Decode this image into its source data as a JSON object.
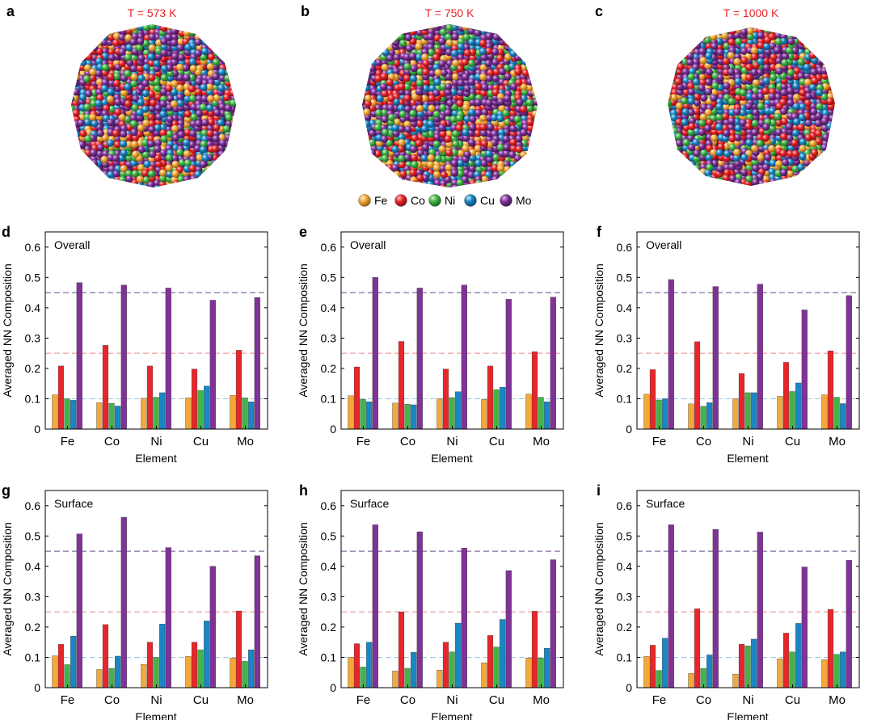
{
  "top_panels": [
    {
      "letter": "a",
      "temperature": "T = 573 K"
    },
    {
      "letter": "b",
      "temperature": "T = 750 K"
    },
    {
      "letter": "c",
      "temperature": "T = 1000 K"
    }
  ],
  "legend": [
    {
      "label": "Fe",
      "color": "#f2a93b"
    },
    {
      "label": "Co",
      "color": "#e8262a"
    },
    {
      "label": "Ni",
      "color": "#44b34a"
    },
    {
      "label": "Cu",
      "color": "#1a86c4"
    },
    {
      "label": "Mo",
      "color": "#7f3396"
    }
  ],
  "reference_lines": [
    {
      "value": 0.45,
      "color": "#6b4a86"
    },
    {
      "value": 0.25,
      "color": "#e7898c"
    },
    {
      "value": 0.1,
      "color": "#9fc6dd"
    }
  ],
  "chart_data": [
    {
      "panel": "d",
      "type": "bar",
      "annotation": "Overall",
      "xlabel": "Element",
      "ylabel": "Averaged NN Composition",
      "categories": [
        "Fe",
        "Co",
        "Ni",
        "Cu",
        "Mo"
      ],
      "ylim": [
        0,
        0.65
      ],
      "yticks": [
        "0",
        "0.1",
        "0.2",
        "0.3",
        "0.4",
        "0.5",
        "0.6"
      ],
      "series": [
        {
          "name": "Fe",
          "values": [
            0.113,
            0.087,
            0.102,
            0.103,
            0.111
          ]
        },
        {
          "name": "Co",
          "values": [
            0.208,
            0.276,
            0.208,
            0.198,
            0.26
          ]
        },
        {
          "name": "Ni",
          "values": [
            0.1,
            0.085,
            0.105,
            0.127,
            0.103
          ]
        },
        {
          "name": "Cu",
          "values": [
            0.095,
            0.076,
            0.12,
            0.142,
            0.09
          ]
        },
        {
          "name": "Mo",
          "values": [
            0.483,
            0.475,
            0.465,
            0.425,
            0.434
          ]
        }
      ]
    },
    {
      "panel": "e",
      "type": "bar",
      "annotation": "Overall",
      "xlabel": "Element",
      "ylabel": "Averaged NN Composition",
      "categories": [
        "Fe",
        "Co",
        "Ni",
        "Cu",
        "Mo"
      ],
      "ylim": [
        0,
        0.65
      ],
      "yticks": [
        "0",
        "0.1",
        "0.2",
        "0.3",
        "0.4",
        "0.5",
        "0.6"
      ],
      "series": [
        {
          "name": "Fe",
          "values": [
            0.11,
            0.086,
            0.1,
            0.098,
            0.115
          ]
        },
        {
          "name": "Co",
          "values": [
            0.205,
            0.289,
            0.198,
            0.208,
            0.255
          ]
        },
        {
          "name": "Ni",
          "values": [
            0.098,
            0.082,
            0.104,
            0.13,
            0.105
          ]
        },
        {
          "name": "Cu",
          "values": [
            0.09,
            0.08,
            0.123,
            0.138,
            0.09
          ]
        },
        {
          "name": "Mo",
          "values": [
            0.5,
            0.465,
            0.475,
            0.428,
            0.435
          ]
        }
      ]
    },
    {
      "panel": "f",
      "type": "bar",
      "annotation": "Overall",
      "xlabel": "Element",
      "ylabel": "Averaged NN Composition",
      "categories": [
        "Fe",
        "Co",
        "Ni",
        "Cu",
        "Mo"
      ],
      "ylim": [
        0,
        0.65
      ],
      "yticks": [
        "0",
        "0.1",
        "0.2",
        "0.3",
        "0.4",
        "0.5",
        "0.6"
      ],
      "series": [
        {
          "name": "Fe",
          "values": [
            0.115,
            0.083,
            0.1,
            0.108,
            0.113
          ]
        },
        {
          "name": "Co",
          "values": [
            0.196,
            0.288,
            0.183,
            0.22,
            0.258
          ]
        },
        {
          "name": "Ni",
          "values": [
            0.096,
            0.075,
            0.12,
            0.124,
            0.105
          ]
        },
        {
          "name": "Cu",
          "values": [
            0.1,
            0.087,
            0.12,
            0.152,
            0.084
          ]
        },
        {
          "name": "Mo",
          "values": [
            0.493,
            0.47,
            0.478,
            0.393,
            0.44
          ]
        }
      ]
    },
    {
      "panel": "g",
      "type": "bar",
      "annotation": "Surface",
      "xlabel": "Element",
      "ylabel": "Averaged NN Composition",
      "categories": [
        "Fe",
        "Co",
        "Ni",
        "Cu",
        "Mo"
      ],
      "ylim": [
        0,
        0.65
      ],
      "yticks": [
        "0",
        "0.1",
        "0.2",
        "0.3",
        "0.4",
        "0.5",
        "0.6"
      ],
      "series": [
        {
          "name": "Fe",
          "values": [
            0.105,
            0.06,
            0.077,
            0.103,
            0.098
          ]
        },
        {
          "name": "Co",
          "values": [
            0.143,
            0.208,
            0.15,
            0.15,
            0.253
          ]
        },
        {
          "name": "Ni",
          "values": [
            0.076,
            0.063,
            0.1,
            0.125,
            0.087
          ]
        },
        {
          "name": "Cu",
          "values": [
            0.17,
            0.104,
            0.21,
            0.22,
            0.125
          ]
        },
        {
          "name": "Mo",
          "values": [
            0.507,
            0.562,
            0.462,
            0.4,
            0.435
          ]
        }
      ]
    },
    {
      "panel": "h",
      "type": "bar",
      "annotation": "Surface",
      "xlabel": "Element",
      "ylabel": "Averaged NN Composition",
      "categories": [
        "Fe",
        "Co",
        "Ni",
        "Cu",
        "Mo"
      ],
      "ylim": [
        0,
        0.65
      ],
      "yticks": [
        "0",
        "0.1",
        "0.2",
        "0.3",
        "0.4",
        "0.5",
        "0.6"
      ],
      "series": [
        {
          "name": "Fe",
          "values": [
            0.1,
            0.055,
            0.058,
            0.082,
            0.098
          ]
        },
        {
          "name": "Co",
          "values": [
            0.145,
            0.25,
            0.15,
            0.172,
            0.252
          ]
        },
        {
          "name": "Ni",
          "values": [
            0.068,
            0.064,
            0.118,
            0.134,
            0.098
          ]
        },
        {
          "name": "Cu",
          "values": [
            0.15,
            0.117,
            0.213,
            0.225,
            0.13
          ]
        },
        {
          "name": "Mo",
          "values": [
            0.537,
            0.514,
            0.46,
            0.386,
            0.422
          ]
        }
      ]
    },
    {
      "panel": "i",
      "type": "bar",
      "annotation": "Surface",
      "xlabel": "Element",
      "ylabel": "Averaged NN Composition",
      "categories": [
        "Fe",
        "Co",
        "Ni",
        "Cu",
        "Mo"
      ],
      "ylim": [
        0,
        0.65
      ],
      "yticks": [
        "0",
        "0.1",
        "0.2",
        "0.3",
        "0.4",
        "0.5",
        "0.6"
      ],
      "series": [
        {
          "name": "Fe",
          "values": [
            0.103,
            0.047,
            0.045,
            0.095,
            0.092
          ]
        },
        {
          "name": "Co",
          "values": [
            0.14,
            0.26,
            0.143,
            0.18,
            0.258
          ]
        },
        {
          "name": "Ni",
          "values": [
            0.057,
            0.063,
            0.138,
            0.118,
            0.11
          ]
        },
        {
          "name": "Cu",
          "values": [
            0.163,
            0.108,
            0.16,
            0.212,
            0.118
          ]
        },
        {
          "name": "Mo",
          "values": [
            0.537,
            0.522,
            0.513,
            0.398,
            0.42
          ]
        }
      ]
    }
  ]
}
